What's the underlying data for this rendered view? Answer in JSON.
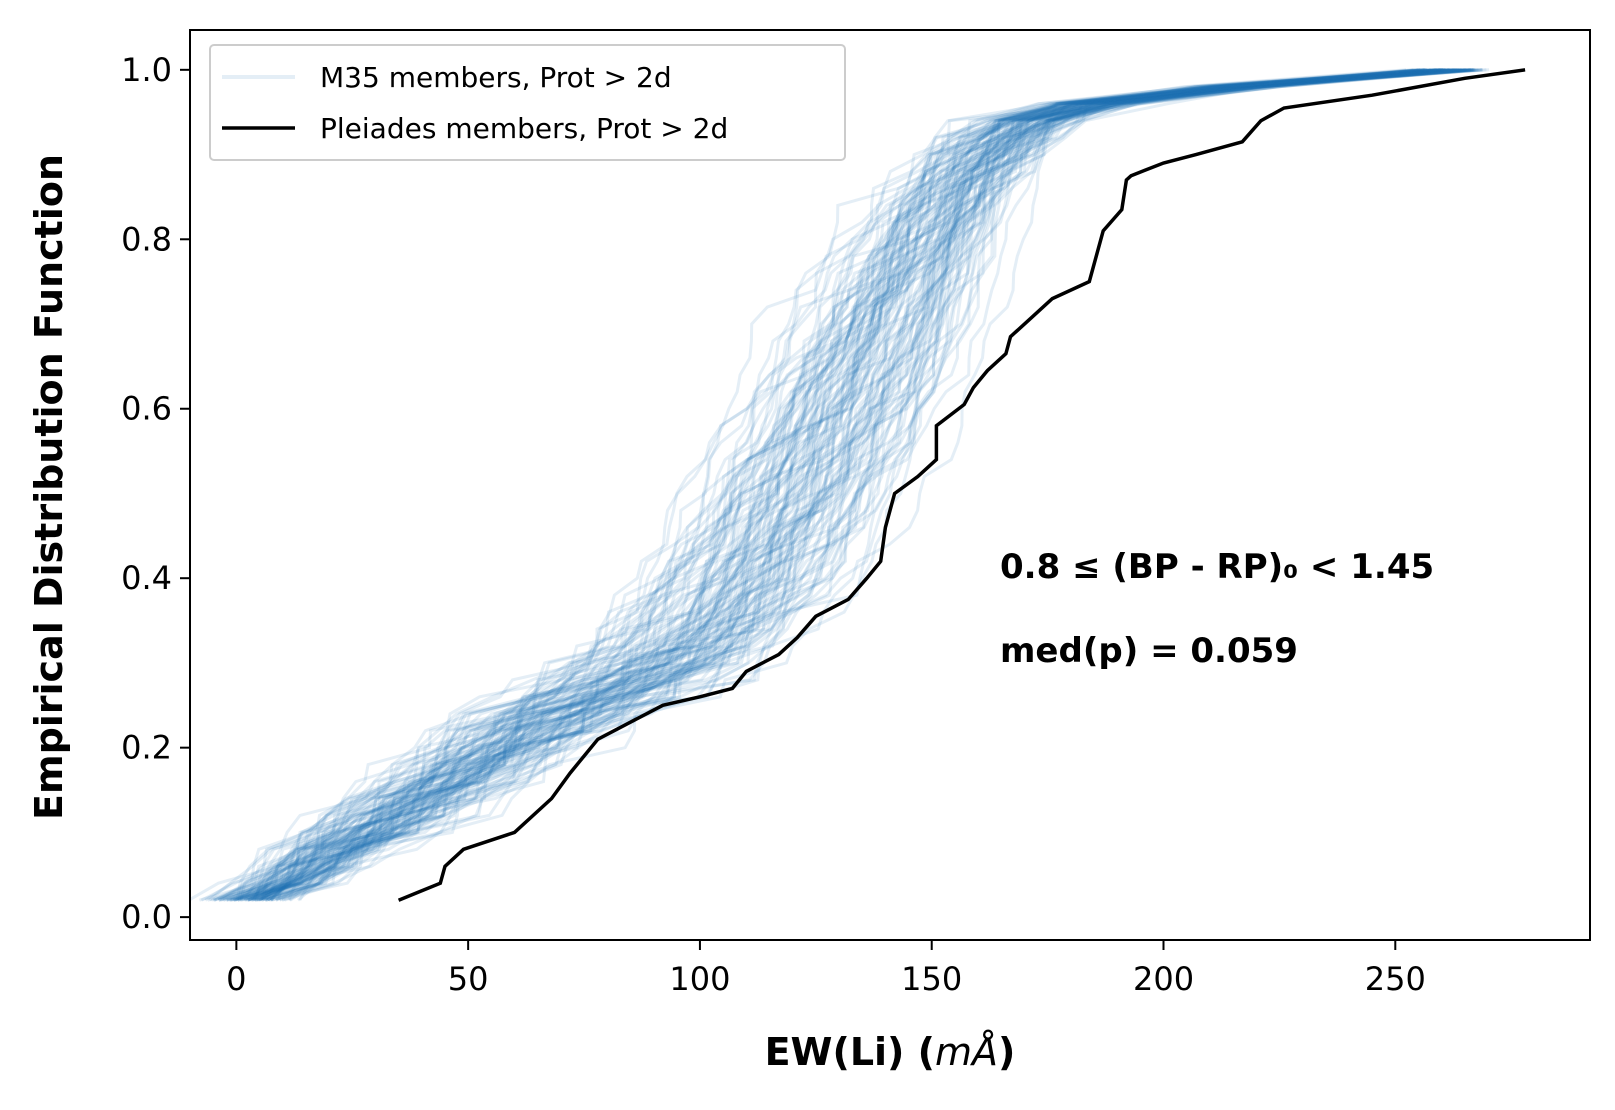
{
  "chart_data": {
    "type": "line",
    "title": "",
    "xlabel": "EW(Li) (",
    "xlabel_unit": "mÅ",
    "xlabel_close": ")",
    "ylabel": "Empirical Distribution Function",
    "xlim": [
      -10,
      292
    ],
    "ylim": [
      -0.027,
      1.047
    ],
    "xticks": [
      0,
      50,
      100,
      150,
      200,
      250
    ],
    "xtick_labels": [
      "0",
      "50",
      "100",
      "150",
      "200",
      "250"
    ],
    "yticks": [
      0.0,
      0.2,
      0.4,
      0.6,
      0.8,
      1.0
    ],
    "ytick_labels": [
      "0.0",
      "0.2",
      "0.4",
      "0.6",
      "0.8",
      "1.0"
    ],
    "grid": false,
    "legend_position": "upper-left",
    "annotations": [
      {
        "text": "0.8 ≤ (BP - RP)₀ < 1.45"
      },
      {
        "text": "med(p) = 0.059"
      }
    ],
    "series": [
      {
        "name": "M35 members, Prot > 2d",
        "color": "#1f77b4",
        "alpha": 0.12,
        "realizations": 120,
        "median_curve": {
          "x": [
            3,
            12,
            18,
            25,
            35,
            45,
            55,
            62,
            70,
            78,
            88,
            95,
            103,
            108,
            113,
            118,
            122,
            127,
            132,
            137,
            142,
            147,
            152,
            158,
            165,
            172,
            185,
            200,
            220,
            240,
            262
          ],
          "y": [
            0.02,
            0.04,
            0.07,
            0.09,
            0.12,
            0.15,
            0.19,
            0.22,
            0.24,
            0.26,
            0.28,
            0.3,
            0.33,
            0.36,
            0.4,
            0.45,
            0.5,
            0.56,
            0.62,
            0.68,
            0.74,
            0.8,
            0.85,
            0.89,
            0.92,
            0.945,
            0.96,
            0.972,
            0.982,
            0.99,
            1.0
          ]
        }
      },
      {
        "name": "Pleiades members, Prot > 2d",
        "color": "#000000",
        "x": [
          35,
          44,
          45,
          49,
          60,
          68,
          72,
          75,
          78,
          85,
          92,
          100,
          107,
          110,
          117,
          121,
          125,
          132,
          136,
          139,
          140,
          142,
          147,
          151,
          151,
          157,
          159,
          162,
          166,
          167,
          171,
          176,
          184,
          187,
          191,
          192,
          193,
          200,
          207,
          217,
          221,
          226,
          245,
          265,
          278
        ],
        "y": [
          0.02,
          0.04,
          0.06,
          0.08,
          0.1,
          0.14,
          0.17,
          0.19,
          0.21,
          0.23,
          0.25,
          0.26,
          0.27,
          0.29,
          0.31,
          0.33,
          0.355,
          0.375,
          0.4,
          0.42,
          0.46,
          0.5,
          0.52,
          0.54,
          0.58,
          0.605,
          0.625,
          0.645,
          0.665,
          0.685,
          0.705,
          0.73,
          0.75,
          0.81,
          0.835,
          0.87,
          0.875,
          0.89,
          0.9,
          0.915,
          0.94,
          0.955,
          0.97,
          0.99,
          1.0
        ]
      }
    ]
  }
}
